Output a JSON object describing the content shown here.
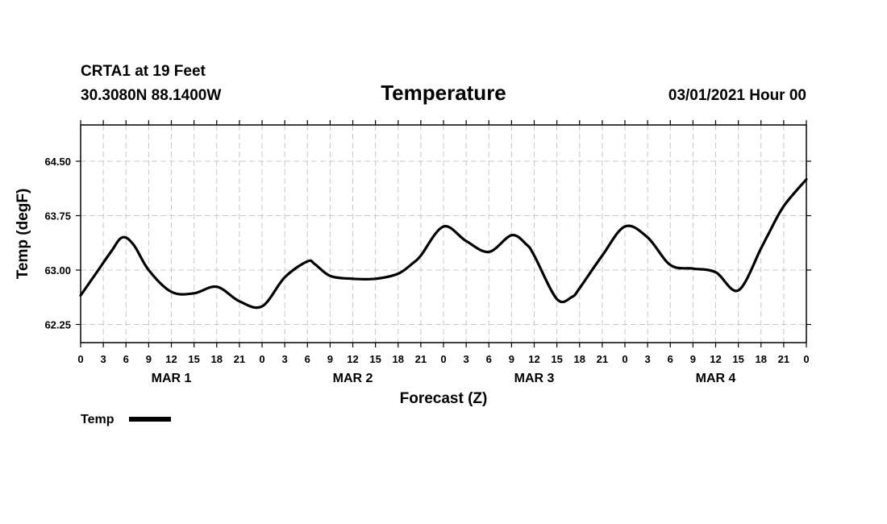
{
  "header": {
    "station": "CRTA1 at 19 Feet",
    "coords": "30.3080N 88.1400W",
    "title": "Temperature",
    "datetime": "03/01/2021 Hour 00"
  },
  "chart_data": {
    "type": "line",
    "title": "Temperature",
    "xlabel": "Forecast (Z)",
    "ylabel": "Temp (degF)",
    "xlim": [
      0,
      96
    ],
    "ylim": [
      62.0,
      65.0
    ],
    "y_ticks": [
      62.25,
      63.0,
      63.75,
      64.5
    ],
    "y_tick_labels": [
      "62.25",
      "63.00",
      "63.75",
      "64.50"
    ],
    "x_ticks": [
      0,
      3,
      6,
      9,
      12,
      15,
      18,
      21,
      24,
      27,
      30,
      33,
      36,
      39,
      42,
      45,
      48,
      51,
      54,
      57,
      60,
      63,
      66,
      69,
      72,
      75,
      78,
      81,
      84,
      87,
      90,
      93,
      96
    ],
    "x_tick_labels": [
      "0",
      "3",
      "6",
      "9",
      "12",
      "15",
      "18",
      "21",
      "0",
      "3",
      "6",
      "9",
      "12",
      "15",
      "18",
      "21",
      "0",
      "3",
      "6",
      "9",
      "12",
      "15",
      "18",
      "21",
      "0",
      "3",
      "6",
      "9",
      "12",
      "15",
      "18",
      "21",
      "0"
    ],
    "day_labels": [
      {
        "label": "MAR 1",
        "x": 12
      },
      {
        "label": "MAR 2",
        "x": 36
      },
      {
        "label": "MAR 3",
        "x": 60
      },
      {
        "label": "MAR 4",
        "x": 84
      }
    ],
    "grid": true,
    "legend": {
      "position": "bottom-left",
      "entries": [
        "Temp"
      ]
    },
    "series": [
      {
        "name": "Temp",
        "color": "#000000",
        "x": [
          0,
          2,
          4,
          5.5,
          7,
          9,
          12,
          15,
          18,
          21,
          24,
          27,
          30,
          31,
          33,
          36,
          39,
          42,
          44,
          45,
          48,
          51,
          54,
          57,
          59,
          60,
          63,
          65,
          66,
          69,
          72,
          75,
          78,
          81,
          84,
          87,
          90,
          91,
          93,
          96
        ],
        "values": [
          62.65,
          62.95,
          63.25,
          63.45,
          63.35,
          63.0,
          62.7,
          62.68,
          62.77,
          62.57,
          62.5,
          62.9,
          63.12,
          63.08,
          62.92,
          62.88,
          62.88,
          62.95,
          63.1,
          63.2,
          63.6,
          63.4,
          63.25,
          63.48,
          63.35,
          63.2,
          62.6,
          62.63,
          62.75,
          63.2,
          63.6,
          63.45,
          63.07,
          63.02,
          62.97,
          62.72,
          63.3,
          63.5,
          63.88,
          64.25
        ]
      }
    ]
  }
}
